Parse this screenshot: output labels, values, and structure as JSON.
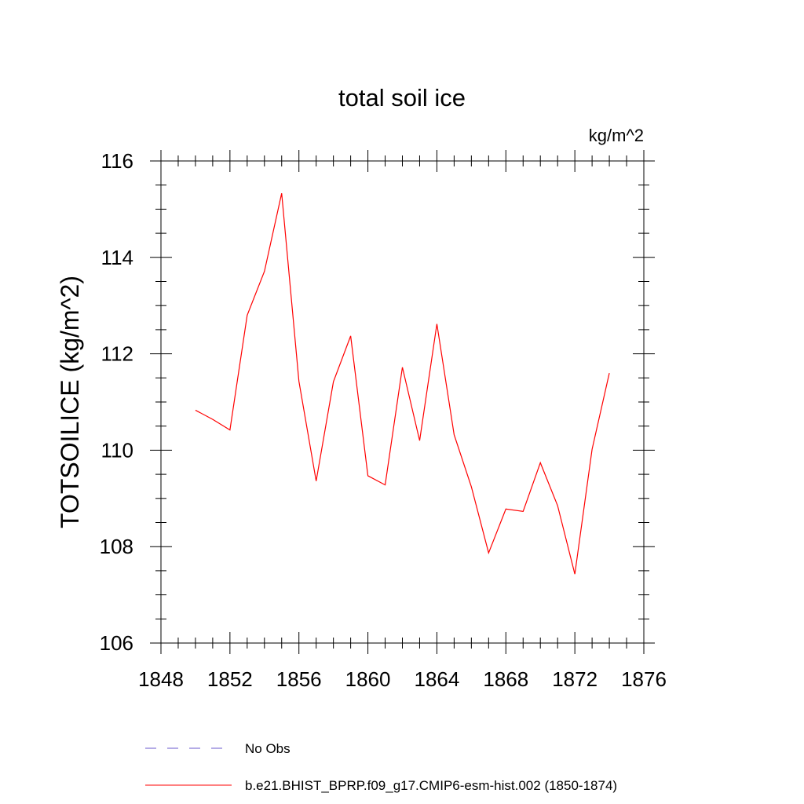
{
  "chart_data": {
    "type": "line",
    "title": "total soil ice",
    "units_label": "kg/m^2",
    "ylabel": "TOTSOILICE  (kg/m^2)",
    "xlabel": "",
    "xlim": [
      1848,
      1876
    ],
    "ylim": [
      106,
      116
    ],
    "xticks": [
      1848,
      1852,
      1856,
      1860,
      1864,
      1868,
      1872,
      1876
    ],
    "yticks": [
      106,
      108,
      110,
      112,
      114,
      116
    ],
    "grid": false,
    "legend_position": "bottom",
    "series": [
      {
        "name": "No Obs",
        "color": "#6a5acd",
        "dash": "dashed",
        "x": [],
        "y": []
      },
      {
        "name": "b.e21.BHIST_BPRP.f09_g17.CMIP6-esm-hist.002 (1850-1874)",
        "color": "#ff0000",
        "dash": "solid",
        "x": [
          1850,
          1851,
          1852,
          1853,
          1854,
          1855,
          1856,
          1857,
          1858,
          1859,
          1860,
          1861,
          1862,
          1863,
          1864,
          1865,
          1866,
          1867,
          1868,
          1869,
          1870,
          1871,
          1872,
          1873,
          1874
        ],
        "y": [
          110.83,
          110.64,
          110.42,
          112.8,
          113.71,
          115.33,
          111.43,
          109.36,
          111.42,
          112.37,
          109.47,
          109.28,
          111.72,
          110.2,
          112.62,
          110.32,
          109.24,
          107.87,
          108.78,
          108.73,
          109.74,
          108.85,
          107.43,
          110.02,
          111.6
        ]
      }
    ]
  }
}
